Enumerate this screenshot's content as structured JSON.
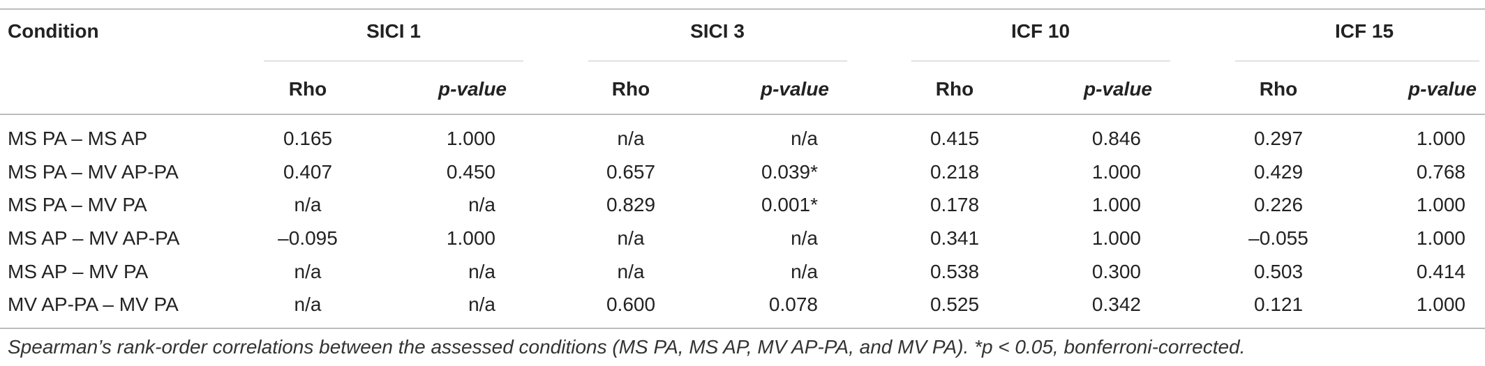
{
  "table": {
    "header": {
      "condition_label": "Condition",
      "groups": [
        "SICI 1",
        "SICI 3",
        "ICF 10",
        "ICF 15"
      ],
      "rho_label": "Rho",
      "pvalue_label": "p-value"
    },
    "rows": [
      {
        "condition": "MS PA – MS AP",
        "values": [
          "0.165",
          "1.000",
          "n/a",
          "n/a",
          "0.415",
          "0.846",
          "0.297",
          "1.000"
        ]
      },
      {
        "condition": "MS PA – MV AP-PA",
        "values": [
          "0.407",
          "0.450",
          "0.657",
          "0.039*",
          "0.218",
          "1.000",
          "0.429",
          "0.768"
        ]
      },
      {
        "condition": "MS PA – MV PA",
        "values": [
          "n/a",
          "n/a",
          "0.829",
          "0.001*",
          "0.178",
          "1.000",
          "0.226",
          "1.000"
        ]
      },
      {
        "condition": "MS AP – MV AP-PA",
        "values": [
          "–0.095",
          "1.000",
          "n/a",
          "n/a",
          "0.341",
          "1.000",
          "–0.055",
          "1.000"
        ]
      },
      {
        "condition": "MS AP – MV PA",
        "values": [
          "n/a",
          "n/a",
          "n/a",
          "n/a",
          "0.538",
          "0.300",
          "0.503",
          "0.414"
        ]
      },
      {
        "condition": "MV AP-PA – MV PA",
        "values": [
          "n/a",
          "n/a",
          "0.600",
          "0.078",
          "0.525",
          "0.342",
          "0.121",
          "1.000"
        ]
      }
    ]
  },
  "caption": "Spearman’s rank-order correlations between the assessed conditions (MS PA, MS AP, MV AP-PA, and MV PA). *p < 0.05, bonferroni-corrected."
}
